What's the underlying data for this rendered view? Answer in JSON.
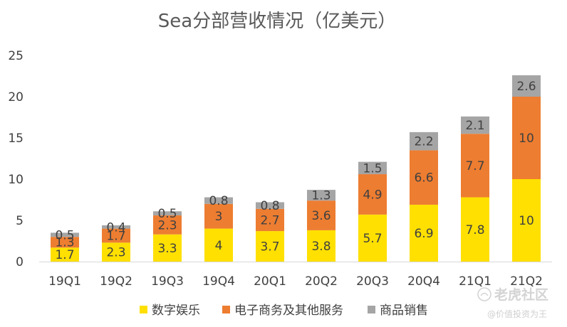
{
  "chart_data": {
    "type": "bar",
    "stacked": true,
    "title": "Sea分部营收情况（亿美元）",
    "categories": [
      "19Q1",
      "19Q2",
      "19Q3",
      "19Q4",
      "20Q1",
      "20Q2",
      "20Q3",
      "20Q4",
      "21Q1",
      "21Q2"
    ],
    "series": [
      {
        "name": "数字娱乐",
        "color": "#ffe000",
        "values": [
          1.7,
          2.3,
          3.3,
          4,
          3.7,
          3.8,
          5.7,
          6.9,
          7.8,
          10
        ]
      },
      {
        "name": "电子商务及其他服务",
        "color": "#ed7d31",
        "values": [
          1.3,
          1.7,
          2.3,
          3,
          2.7,
          3.6,
          4.9,
          6.6,
          7.7,
          10
        ]
      },
      {
        "name": "商品销售",
        "color": "#a5a5a5",
        "values": [
          0.5,
          0.4,
          0.5,
          0.8,
          0.8,
          1.3,
          1.5,
          2.2,
          2.1,
          2.6
        ]
      }
    ],
    "ylim": [
      0,
      25
    ],
    "yticks": [
      0,
      5,
      10,
      15,
      20,
      25
    ],
    "grid": false,
    "legend_position": "bottom"
  },
  "watermark": {
    "brand": "老虎社区",
    "handle": "@价值投资为王"
  }
}
